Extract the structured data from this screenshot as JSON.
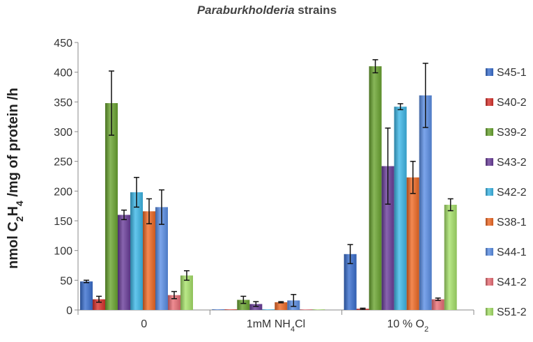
{
  "chart_data": {
    "type": "bar",
    "title": "Paraburkholderia strains",
    "title_italic_part": "Paraburkholderia",
    "title_rest": " strains",
    "ylabel": "nmol C2H4 /mg of protein /h",
    "ylabel_parts": [
      "nmol C",
      "2",
      "H",
      "4",
      " /mg of protein /h"
    ],
    "ylim": [
      0,
      450
    ],
    "yticks": [
      0,
      50,
      100,
      150,
      200,
      250,
      300,
      350,
      400,
      450
    ],
    "categories": [
      "0",
      "1mM NH4Cl",
      "10 % O2"
    ],
    "category_labels": [
      {
        "main": "0",
        "sub": "",
        "after": ""
      },
      {
        "main": "1mM NH",
        "sub": "4",
        "after": "Cl"
      },
      {
        "main": "10 % O",
        "sub": "2",
        "after": ""
      }
    ],
    "series": [
      {
        "name": "S45-1",
        "color": "#3a6fcf",
        "values": [
          48,
          1,
          94
        ],
        "errors": [
          2,
          0,
          16
        ]
      },
      {
        "name": "S40-2",
        "color": "#d9322d",
        "values": [
          18,
          1,
          2
        ],
        "errors": [
          5,
          0,
          1
        ]
      },
      {
        "name": "S39-2",
        "color": "#6aa530",
        "values": [
          348,
          17,
          410
        ],
        "errors": [
          54,
          6,
          11
        ]
      },
      {
        "name": "S43-2",
        "color": "#6a3d9a",
        "values": [
          160,
          10,
          242
        ],
        "errors": [
          8,
          4,
          64
        ]
      },
      {
        "name": "S42-2",
        "color": "#3db8e8",
        "values": [
          198,
          1,
          342
        ],
        "errors": [
          25,
          0,
          5
        ]
      },
      {
        "name": "S38-1",
        "color": "#f06a25",
        "values": [
          166,
          13,
          223
        ],
        "errors": [
          21,
          1,
          27
        ]
      },
      {
        "name": "S44-1",
        "color": "#5b8fe6",
        "values": [
          173,
          16,
          361
        ],
        "errors": [
          29,
          10,
          54
        ]
      },
      {
        "name": "S41-2",
        "color": "#ea6f77",
        "values": [
          25,
          1,
          18
        ],
        "errors": [
          6,
          0,
          2
        ]
      },
      {
        "name": "S51-2",
        "color": "#a7e26a",
        "values": [
          58,
          1,
          177
        ],
        "errors": [
          8,
          0,
          10
        ]
      }
    ],
    "grid": false,
    "legend_position": "right",
    "error_bars": true
  }
}
